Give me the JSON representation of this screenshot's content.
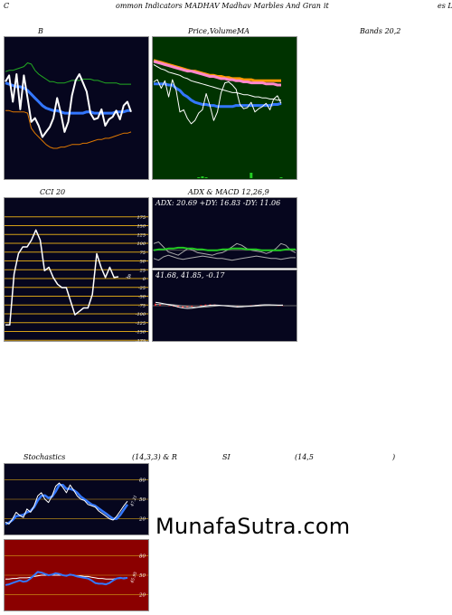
{
  "header": {
    "left": "C",
    "title": "ommon Indicators MADHAV Madhav Marbles And Gran",
    "mid": "it",
    "right": "es Li"
  },
  "panels": {
    "bollinger": {
      "label": "B",
      "right_label": "Bands 20,2",
      "bg": "#06061e"
    },
    "price_ma": {
      "label": "Price,",
      "label2": "Volume,",
      "label3": "MA",
      "bg": "#003300"
    },
    "cci": {
      "label": "CCI 20",
      "bg": "#06061e",
      "grid": "#d4a017",
      "ticks": [
        "175",
        "150",
        "125",
        "100",
        "75",
        "50",
        "25",
        "0",
        "-25",
        "-50",
        "-75",
        "-100",
        "-125",
        "-150",
        "-175"
      ],
      "current": "-8"
    },
    "adx": {
      "title": "ADX  & MACD 12,26,9",
      "text": "ADX: 20.69 +DY: 16.83 -DY: 11.06",
      "bg": "#06061e"
    },
    "macd": {
      "text": "41.68,  41.85,  -0.17",
      "bg": "#06061e"
    },
    "stoch": {
      "label": "Stochastics",
      "params": "(14,3,3) & R",
      "si": "SI",
      "params2": "(14,5",
      "close": ")",
      "bg": "#06061e",
      "ticks": [
        "80",
        "50",
        "20"
      ],
      "current": "47.21"
    },
    "rsi": {
      "bg": "#8b0000",
      "ticks": [
        "80",
        "50",
        "20"
      ],
      "current": "45.95"
    }
  },
  "watermark": "MunafaSutra.com",
  "chart_data": [
    {
      "type": "line",
      "name": "bollinger-bands",
      "x": [
        1,
        2,
        3,
        4,
        5,
        6,
        7,
        8,
        9,
        10,
        11,
        12,
        13,
        14,
        15,
        16,
        17,
        18,
        19,
        20,
        21,
        22,
        23,
        24,
        25,
        26,
        27,
        28,
        29,
        30,
        31,
        32,
        33,
        34,
        35
      ],
      "ylim": [
        0,
        100
      ],
      "series": [
        {
          "role": "upper",
          "color": "#22aa22",
          "values": [
            79,
            80,
            80,
            81,
            82,
            83,
            86,
            85,
            80,
            77,
            75,
            73,
            71,
            71,
            70,
            70,
            70,
            71,
            72,
            72,
            72,
            73,
            73,
            73,
            72,
            72,
            71,
            70,
            70,
            70,
            70,
            69,
            69,
            69,
            69
          ]
        },
        {
          "role": "middle",
          "color": "#3377ff",
          "values": [
            70,
            69,
            68,
            67,
            67,
            66,
            64,
            61,
            58,
            55,
            52,
            50,
            49,
            48,
            48,
            47,
            46,
            46,
            46,
            46,
            46,
            46,
            47,
            47,
            46,
            46,
            46,
            46,
            46,
            46,
            47,
            47,
            47,
            48,
            48
          ]
        },
        {
          "role": "lower",
          "color": "#dd7700",
          "values": [
            48,
            48,
            47,
            47,
            47,
            47,
            46,
            34,
            30,
            27,
            24,
            21,
            19,
            18,
            18,
            19,
            19,
            20,
            21,
            21,
            21,
            22,
            22,
            23,
            24,
            25,
            25,
            26,
            26,
            27,
            28,
            29,
            30,
            30,
            31
          ]
        },
        {
          "role": "price",
          "color": "#ffffff",
          "values": [
            71,
            76,
            55,
            77,
            49,
            76,
            58,
            39,
            42,
            36,
            27,
            31,
            35,
            42,
            58,
            46,
            31,
            39,
            60,
            72,
            77,
            70,
            63,
            46,
            41,
            42,
            49,
            36,
            41,
            43,
            48,
            41,
            52,
            55,
            47
          ]
        }
      ]
    },
    {
      "type": "line",
      "name": "price-ma",
      "x": [
        1,
        2,
        3,
        4,
        5,
        6,
        7,
        8,
        9,
        10,
        11,
        12,
        13,
        14,
        15,
        16,
        17,
        18,
        19,
        20,
        21,
        22,
        23,
        24,
        25,
        26,
        27,
        28,
        29,
        30,
        31,
        32,
        33,
        34,
        35
      ],
      "ylim": [
        0,
        100
      ],
      "series": [
        {
          "role": "ma-long",
          "color": "#ff9900",
          "values": [
            86,
            85,
            84,
            83,
            82,
            81,
            80,
            79,
            78,
            77,
            76,
            76,
            75,
            74,
            73,
            72,
            72,
            71,
            71,
            70,
            70,
            69,
            69,
            69,
            68,
            68,
            68,
            67,
            67,
            67,
            67,
            67,
            67,
            67,
            67
          ]
        },
        {
          "role": "ma-mid",
          "color": "#ff88cc",
          "values": [
            85,
            84,
            83,
            82,
            81,
            80,
            79,
            78,
            77,
            76,
            76,
            75,
            74,
            73,
            72,
            71,
            71,
            70,
            69,
            69,
            68,
            68,
            67,
            67,
            66,
            66,
            65,
            65,
            65,
            65,
            64,
            64,
            64,
            63,
            63
          ]
        },
        {
          "role": "ma-short",
          "color": "#ffffff",
          "values": [
            82,
            80,
            78,
            77,
            75,
            74,
            73,
            72,
            70,
            69,
            67,
            66,
            65,
            64,
            63,
            62,
            61,
            60,
            59,
            58,
            57,
            56,
            56,
            55,
            54,
            54,
            53,
            52,
            52,
            51,
            51,
            50,
            50,
            49,
            49
          ]
        },
        {
          "role": "ma-blue",
          "color": "#3377ff",
          "values": [
            64,
            64,
            64,
            64,
            63,
            63,
            60,
            58,
            54,
            52,
            49,
            47,
            46,
            45,
            45,
            44,
            44,
            43,
            43,
            43,
            43,
            43,
            44,
            44,
            44,
            44,
            44,
            44,
            44,
            44,
            44,
            44,
            45,
            45,
            46
          ]
        },
        {
          "role": "price",
          "color": "#ffffff",
          "values": [
            66,
            68,
            60,
            67,
            52,
            68,
            58,
            38,
            40,
            32,
            27,
            30,
            37,
            40,
            55,
            44,
            30,
            38,
            56,
            65,
            66,
            63,
            59,
            45,
            41,
            42,
            47,
            38,
            41,
            43,
            46,
            40,
            50,
            53,
            46
          ]
        }
      ],
      "volume": [
        0,
        0,
        0,
        0,
        0,
        0,
        0,
        0,
        0,
        0,
        0,
        0,
        1,
        2,
        1,
        0,
        0,
        0,
        0,
        0,
        0,
        0,
        0,
        0,
        0,
        0,
        6,
        0,
        0,
        0,
        0,
        0,
        0,
        0,
        1
      ]
    },
    {
      "type": "line",
      "name": "cci",
      "x": [
        1,
        2,
        3,
        4,
        5,
        6,
        7,
        8,
        9,
        10,
        11,
        12,
        13,
        14,
        15,
        16,
        17,
        18,
        19,
        20,
        21,
        22,
        23,
        24,
        25,
        26,
        27
      ],
      "ylim": [
        -200,
        200
      ],
      "series": [
        {
          "role": "cci",
          "color": "#ffffff",
          "values": [
            -150,
            -150,
            0,
            60,
            80,
            80,
            100,
            130,
            100,
            10,
            20,
            -10,
            -30,
            -40,
            -40,
            -80,
            -120,
            -110,
            -100,
            -100,
            -60,
            60,
            20,
            -10,
            20,
            -10,
            -8
          ]
        }
      ]
    },
    {
      "type": "line",
      "name": "adx",
      "x": [
        1,
        2,
        3,
        4,
        5,
        6,
        7,
        8,
        9,
        10,
        11,
        12,
        13,
        14,
        15,
        16,
        17,
        18,
        19,
        20,
        21,
        22,
        23,
        24,
        25,
        26,
        27,
        28,
        29,
        30
      ],
      "ylim": [
        0,
        60
      ],
      "series": [
        {
          "role": "adx",
          "color": "#22cc22",
          "values": [
            20,
            21,
            21,
            22,
            22,
            23,
            23,
            22,
            22,
            21,
            21,
            20,
            20,
            20,
            21,
            21,
            22,
            22,
            22,
            21,
            21,
            21,
            20,
            20,
            20,
            20,
            20,
            21,
            21,
            21
          ]
        },
        {
          "role": "plus-di",
          "color": "#aaaaaa",
          "values": [
            28,
            30,
            24,
            18,
            16,
            14,
            18,
            22,
            20,
            17,
            16,
            15,
            14,
            16,
            17,
            20,
            24,
            28,
            26,
            22,
            20,
            19,
            18,
            16,
            18,
            22,
            28,
            26,
            20,
            17
          ]
        },
        {
          "role": "minus-di",
          "color": "#aaaaaa",
          "values": [
            10,
            8,
            12,
            14,
            12,
            10,
            9,
            10,
            11,
            12,
            13,
            12,
            11,
            10,
            10,
            9,
            8,
            9,
            10,
            11,
            12,
            13,
            12,
            11,
            10,
            10,
            9,
            10,
            11,
            11
          ]
        }
      ]
    },
    {
      "type": "line",
      "name": "macd",
      "x": [
        1,
        2,
        3,
        4,
        5,
        6,
        7,
        8,
        9,
        10,
        11,
        12,
        13,
        14,
        15,
        16,
        17,
        18,
        19,
        20,
        21,
        22,
        23,
        24,
        25,
        26,
        27,
        28,
        29
      ],
      "ylim": [
        -8,
        8
      ],
      "series": [
        {
          "role": "macd",
          "color": "#ffffff",
          "values": [
            1.5,
            1.2,
            0.8,
            0.4,
            0,
            -0.6,
            -1,
            -1.2,
            -1.1,
            -0.8,
            -0.4,
            -0.1,
            0.2,
            0.3,
            0.2,
            0,
            -0.2,
            -0.4,
            -0.6,
            -0.5,
            -0.3,
            -0.1,
            0.1,
            0.3,
            0.4,
            0.4,
            0.3,
            0.2,
            0.2
          ]
        },
        {
          "role": "signal",
          "color": "#aaaaaa",
          "values": [
            0.6,
            0.7,
            0.7,
            0.6,
            0.4,
            0.2,
            -0.1,
            -0.4,
            -0.6,
            -0.7,
            -0.7,
            -0.6,
            -0.4,
            -0.2,
            0,
            0.1,
            0.1,
            0,
            -0.1,
            -0.2,
            -0.3,
            -0.3,
            -0.2,
            -0.1,
            0.1,
            0.2,
            0.3,
            0.3,
            0.3
          ]
        }
      ],
      "histogram": [
        0.9,
        0.5,
        0.1,
        -0.2,
        -0.4,
        -0.8,
        -0.9,
        -0.8,
        -0.5,
        -0.1,
        0.3,
        0.5,
        0.6,
        0.5,
        0.2,
        -0.1,
        -0.3,
        -0.4,
        -0.5,
        -0.3,
        0,
        0.2,
        0.3,
        0.4,
        0.3,
        0.2,
        0,
        -0.1,
        -0.1
      ]
    },
    {
      "type": "line",
      "name": "stochastics",
      "x": [
        1,
        2,
        3,
        4,
        5,
        6,
        7,
        8,
        9,
        10,
        11,
        12,
        13,
        14,
        15,
        16,
        17,
        18,
        19,
        20,
        21,
        22,
        23,
        24,
        25,
        26,
        27,
        28,
        29,
        30,
        31,
        32,
        33,
        34,
        35
      ],
      "ylim": [
        0,
        100
      ],
      "series": [
        {
          "role": "k",
          "color": "#ffffff",
          "values": [
            15,
            12,
            20,
            30,
            25,
            22,
            35,
            30,
            40,
            55,
            60,
            50,
            45,
            55,
            70,
            75,
            68,
            60,
            72,
            64,
            55,
            50,
            48,
            42,
            40,
            38,
            32,
            28,
            24,
            20,
            18,
            24,
            32,
            40,
            47
          ]
        },
        {
          "role": "d",
          "color": "#3377ff",
          "values": [
            12,
            14,
            18,
            24,
            25,
            26,
            30,
            32,
            38,
            48,
            55,
            56,
            52,
            54,
            62,
            72,
            72,
            66,
            66,
            64,
            60,
            54,
            50,
            46,
            42,
            40,
            36,
            32,
            28,
            24,
            20,
            20,
            26,
            34,
            42
          ]
        }
      ]
    },
    {
      "type": "line",
      "name": "rsi",
      "x": [
        1,
        2,
        3,
        4,
        5,
        6,
        7,
        8,
        9,
        10,
        11,
        12,
        13,
        14,
        15,
        16,
        17,
        18,
        19,
        20,
        21,
        22,
        23,
        24,
        25,
        26,
        27,
        28,
        29,
        30,
        31,
        32,
        33,
        34,
        35
      ],
      "ylim": [
        0,
        100
      ],
      "series": [
        {
          "role": "rsi",
          "color": "#3377ff",
          "values": [
            35,
            36,
            38,
            40,
            42,
            40,
            41,
            45,
            50,
            55,
            54,
            52,
            50,
            51,
            53,
            52,
            50,
            49,
            51,
            50,
            48,
            47,
            46,
            45,
            42,
            38,
            37,
            37,
            36,
            38,
            42,
            45,
            46,
            45,
            46
          ]
        },
        {
          "role": "rsi-avg",
          "color": "#ffffff",
          "values": [
            44,
            44,
            45,
            45,
            46,
            46,
            46,
            47,
            48,
            49,
            50,
            50,
            50,
            50,
            50,
            50,
            50,
            50,
            50,
            50,
            49,
            49,
            48,
            48,
            47,
            46,
            45,
            45,
            44,
            44,
            44,
            45,
            45,
            46,
            46
          ]
        }
      ]
    }
  ]
}
